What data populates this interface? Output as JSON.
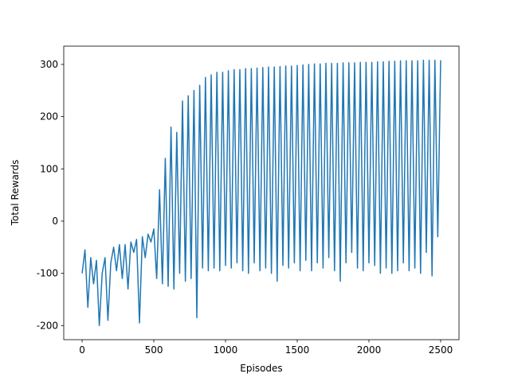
{
  "chart_data": {
    "type": "line",
    "xlabel": "Episodes",
    "ylabel": "Total Rewards",
    "color": "#1f77b4",
    "xlim": [
      -128,
      2628
    ],
    "ylim": [
      -227,
      335
    ],
    "xticks": [
      0,
      500,
      1000,
      1500,
      2000,
      2500
    ],
    "yticks": [
      -200,
      -100,
      0,
      100,
      200,
      300
    ],
    "x": [
      0,
      20,
      40,
      60,
      80,
      100,
      120,
      140,
      160,
      180,
      200,
      220,
      240,
      260,
      280,
      300,
      320,
      340,
      360,
      380,
      400,
      420,
      440,
      460,
      480,
      500,
      520,
      540,
      560,
      580,
      600,
      620,
      640,
      660,
      680,
      700,
      720,
      740,
      760,
      780,
      800,
      820,
      840,
      860,
      880,
      900,
      920,
      940,
      960,
      980,
      1000,
      1020,
      1040,
      1060,
      1080,
      1100,
      1120,
      1140,
      1160,
      1180,
      1200,
      1220,
      1240,
      1260,
      1280,
      1300,
      1320,
      1340,
      1360,
      1380,
      1400,
      1420,
      1440,
      1460,
      1480,
      1500,
      1520,
      1540,
      1560,
      1580,
      1600,
      1620,
      1640,
      1660,
      1680,
      1700,
      1720,
      1740,
      1760,
      1780,
      1800,
      1820,
      1840,
      1860,
      1880,
      1900,
      1920,
      1940,
      1960,
      1980,
      2000,
      2020,
      2040,
      2060,
      2080,
      2100,
      2120,
      2140,
      2160,
      2180,
      2200,
      2220,
      2240,
      2260,
      2280,
      2300,
      2320,
      2340,
      2360,
      2380,
      2400,
      2420,
      2440,
      2460,
      2480,
      2500
    ],
    "values": [
      -100,
      -55,
      -165,
      -70,
      -120,
      -75,
      -200,
      -100,
      -70,
      -190,
      -80,
      -50,
      -95,
      -45,
      -110,
      -45,
      -130,
      -40,
      -60,
      -35,
      -195,
      -30,
      -70,
      -25,
      -40,
      -15,
      -110,
      60,
      -120,
      120,
      -125,
      180,
      -130,
      170,
      -100,
      230,
      -115,
      240,
      -110,
      250,
      -185,
      260,
      -90,
      275,
      -95,
      280,
      -90,
      285,
      -95,
      285,
      -85,
      288,
      -90,
      290,
      -80,
      290,
      -95,
      292,
      -100,
      292,
      -80,
      293,
      -95,
      294,
      -90,
      295,
      -100,
      295,
      -115,
      296,
      -85,
      297,
      -90,
      297,
      -80,
      298,
      -95,
      299,
      -75,
      300,
      -95,
      301,
      -80,
      301,
      -90,
      302,
      -70,
      302,
      -95,
      302,
      -115,
      303,
      -80,
      303,
      -60,
      303,
      -90,
      304,
      -95,
      304,
      -80,
      304,
      -85,
      305,
      -100,
      305,
      -90,
      306,
      -100,
      306,
      -95,
      307,
      -80,
      307,
      -95,
      307,
      -90,
      307,
      -100,
      308,
      -60,
      308,
      -105,
      308,
      -30,
      308
    ]
  }
}
